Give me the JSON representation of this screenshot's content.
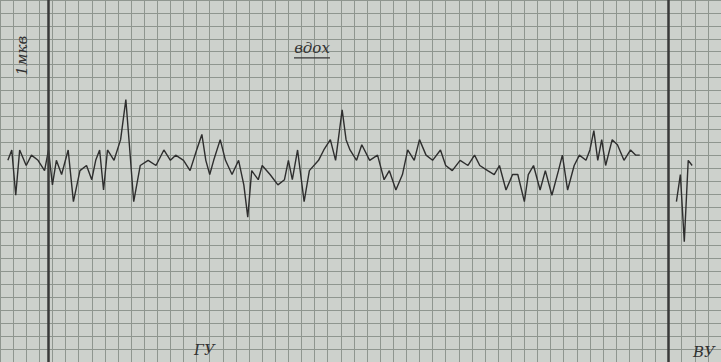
{
  "chart_data": {
    "type": "line",
    "x": [
      0.6,
      0.9,
      1.2,
      1.5,
      2.0,
      2.4,
      2.9,
      3.4,
      3.7,
      4.0,
      4.3,
      4.7,
      5.2,
      5.6,
      6.1,
      6.6,
      7.0,
      7.3,
      7.6,
      7.9,
      8.2,
      8.7,
      9.2,
      9.6,
      9.9,
      10.2,
      10.7,
      11.3,
      11.9,
      12.5,
      13.0,
      13.4,
      14.0,
      14.5,
      15.0,
      15.4,
      15.7,
      16.0,
      16.3,
      16.8,
      17.2,
      17.7,
      18.2,
      18.6,
      18.9,
      19.2,
      19.7,
      20.0,
      20.6,
      21.2,
      21.7,
      22.0,
      22.3,
      22.7,
      23.2,
      23.6,
      24.3,
      24.7,
      25.2,
      25.6,
      26.1,
      26.4,
      26.7,
      27.2,
      27.6,
      28.2,
      28.8,
      29.3,
      29.7,
      30.2,
      30.7,
      31.1,
      31.6,
      32.0,
      32.5,
      33.0,
      33.6,
      34.0,
      34.5,
      35.1,
      35.7,
      36.2,
      36.6,
      37.2,
      37.7,
      38.1,
      38.6,
      39.1,
      39.5,
      40.0,
      40.3,
      40.7,
      41.2,
      41.6,
      42.1,
      42.6,
      42.9,
      43.3,
      43.8,
      44.2,
      44.7,
      45.0,
      45.3,
      45.6,
      45.9,
      46.2,
      46.7,
      47.1,
      47.6,
      48.1,
      48.5,
      48.8,
      50.0,
      51.6,
      51.9,
      52.2,
      52.5,
      52.8
    ],
    "values": [
      15.6,
      16.4,
      12.9,
      16.4,
      15.2,
      16.0,
      15.6,
      14.8,
      16.4,
      13.7,
      15.6,
      14.5,
      16.4,
      12.4,
      14.8,
      15.2,
      14.1,
      15.6,
      16.4,
      13.3,
      16.4,
      15.6,
      17.2,
      20.3,
      16.4,
      12.4,
      15.2,
      15.6,
      15.2,
      16.4,
      15.6,
      16.0,
      15.6,
      14.8,
      16.4,
      17.6,
      15.6,
      14.5,
      15.6,
      17.2,
      15.6,
      14.5,
      15.6,
      13.7,
      11.2,
      14.8,
      14.1,
      15.2,
      14.5,
      13.7,
      14.1,
      15.6,
      14.1,
      16.4,
      12.4,
      14.8,
      15.6,
      16.4,
      17.2,
      15.6,
      19.5,
      17.2,
      16.4,
      15.6,
      16.8,
      15.6,
      16.0,
      14.1,
      14.8,
      13.3,
      14.5,
      16.4,
      15.6,
      17.2,
      16.0,
      15.6,
      16.4,
      15.2,
      14.8,
      15.6,
      15.2,
      16.0,
      15.2,
      14.8,
      14.5,
      15.2,
      13.3,
      14.5,
      14.5,
      12.4,
      14.5,
      15.2,
      13.3,
      14.8,
      12.9,
      14.8,
      16.0,
      13.3,
      15.2,
      16.0,
      15.6,
      16.4,
      17.9,
      15.6,
      17.2,
      15.2,
      17.2,
      16.8,
      15.6,
      16.4,
      16.0,
      16.0,
      null,
      12.4,
      14.5,
      9.3,
      15.6,
      15.2
    ],
    "color": "#2e2e2e",
    "vertical_lines": [
      3.7,
      51.0
    ],
    "annotations": [
      {
        "text": "1мкв",
        "x": 1.7,
        "y": 23.7
      },
      {
        "text": "вдох",
        "x": 23.8,
        "y": 24.3
      },
      {
        "text": "ГУ",
        "x": 15.6,
        "y": 0.9
      },
      {
        "text": "ВУ",
        "x": 53.7,
        "y": 0.8
      }
    ],
    "xlim": [
      0,
      55
    ],
    "xticks": [
      0,
      1,
      2,
      3,
      4,
      5,
      6,
      7,
      8,
      9,
      10,
      11,
      12,
      13,
      14,
      15,
      16,
      17,
      18,
      19,
      20,
      21,
      22,
      23,
      24,
      25,
      26,
      27,
      28,
      29,
      30,
      31,
      32,
      33,
      34,
      35,
      36,
      37,
      38,
      39,
      40,
      41,
      42,
      43,
      44,
      45,
      46,
      47,
      48,
      49,
      50,
      51,
      52,
      53,
      54,
      55
    ],
    "ylim": [
      0,
      28
    ],
    "yticks": [
      0,
      1,
      2,
      3,
      4,
      5,
      6,
      7,
      8,
      9,
      10,
      11,
      12,
      13,
      14,
      15,
      16,
      17,
      18,
      19,
      20,
      21,
      22,
      23,
      24,
      25,
      26,
      27,
      28
    ],
    "grid": true,
    "tick_labels": false
  }
}
